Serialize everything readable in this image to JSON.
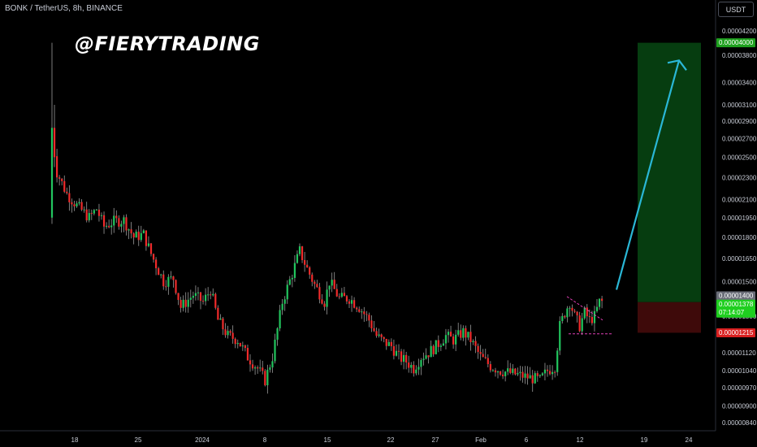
{
  "header": {
    "symbol_title": "BONK / TetherUS, 8h, BINANCE",
    "watermark": "@FIERYTRADING",
    "currency_button": "USDT"
  },
  "colors": {
    "up": "#22c55e",
    "down": "#ef2b2b",
    "wick": "#9a9a9a",
    "target_zone": "#063d10",
    "stop_zone": "#3e0a0a",
    "arrow": "#2ab7d6",
    "pattern_lines": "#e03fb5",
    "target_badge": "#1fa11f",
    "current_badge": "#1fcf1f",
    "stop_badge": "#d92020",
    "level_badge": "#6a6d78"
  },
  "chart_data": {
    "type": "candlestick",
    "title": "BONK / TetherUS, 8h, BINANCE",
    "y_scale": "log",
    "ylim": [
      8e-06,
      4.5e-05
    ],
    "y_ticks": [
      "0.00004200",
      "0.00003800",
      "0.00003400",
      "0.00003100",
      "0.00002900",
      "0.00002700",
      "0.00002500",
      "0.00002300",
      "0.00002100",
      "0.00001950",
      "0.00001800",
      "0.00001650",
      "0.00001500",
      "0.00001300",
      "0.00001120",
      "0.00001040",
      "0.00000970",
      "0.00000900",
      "0.00000840"
    ],
    "x_ticks": [
      "18",
      "25",
      "2024",
      "8",
      "15",
      "22",
      "27",
      "Feb",
      "6",
      "12",
      "19",
      "24"
    ],
    "price_labels": {
      "target": "0.00004000",
      "level": "0.00001400",
      "current": "0.00001378",
      "countdown": "07:14:07",
      "stop": "0.00001215"
    },
    "levels": {
      "target": 4e-05,
      "entry": 1.378e-05,
      "stop": 1.215e-05
    },
    "anchors": [
      [
        0,
        1.95e-05
      ],
      [
        1,
        2.75e-05
      ],
      [
        3,
        2.35e-05
      ],
      [
        7,
        2.15e-05
      ],
      [
        11,
        2.05e-05
      ],
      [
        16,
        1.95e-05
      ],
      [
        19,
        2.02e-05
      ],
      [
        22,
        1.88e-05
      ],
      [
        26,
        1.92e-05
      ],
      [
        30,
        1.93e-05
      ],
      [
        34,
        1.8e-05
      ],
      [
        38,
        1.82e-05
      ],
      [
        41,
        1.68e-05
      ],
      [
        46,
        1.5e-05
      ],
      [
        50,
        1.52e-05
      ],
      [
        53,
        1.35e-05
      ],
      [
        58,
        1.42e-05
      ],
      [
        62,
        1.38e-05
      ],
      [
        65,
        1.45e-05
      ],
      [
        68,
        1.28e-05
      ],
      [
        72,
        1.2e-05
      ],
      [
        76,
        1.18e-05
      ],
      [
        80,
        1.1e-05
      ],
      [
        84,
        1.05e-05
      ],
      [
        87,
        1e-05
      ],
      [
        90,
        1.1e-05
      ],
      [
        94,
        1.38e-05
      ],
      [
        98,
        1.55e-05
      ],
      [
        101,
        1.7e-05
      ],
      [
        104,
        1.58e-05
      ],
      [
        107,
        1.48e-05
      ],
      [
        111,
        1.38e-05
      ],
      [
        113,
        1.5e-05
      ],
      [
        117,
        1.4e-05
      ],
      [
        121,
        1.4e-05
      ],
      [
        125,
        1.35e-05
      ],
      [
        129,
        1.28e-05
      ],
      [
        132,
        1.2e-05
      ],
      [
        135,
        1.17e-05
      ],
      [
        138,
        1.15e-05
      ],
      [
        141,
        1.1e-05
      ],
      [
        144,
        1.08e-05
      ],
      [
        147,
        1.05e-05
      ],
      [
        150,
        1.1e-05
      ],
      [
        153,
        1.12e-05
      ],
      [
        156,
        1.15e-05
      ],
      [
        160,
        1.2e-05
      ],
      [
        163,
        1.18e-05
      ],
      [
        167,
        1.22e-05
      ],
      [
        170,
        1.18e-05
      ],
      [
        174,
        1.1e-05
      ],
      [
        178,
        1.06e-05
      ],
      [
        182,
        1.04e-05
      ],
      [
        186,
        1.03e-05
      ],
      [
        190,
        1.02e-05
      ],
      [
        194,
        1.01e-05
      ],
      [
        198,
        1e-05
      ],
      [
        201,
        1.04e-05
      ],
      [
        204,
        1.06e-05
      ],
      [
        206,
        1.25e-05
      ],
      [
        208,
        1.32e-05
      ],
      [
        210,
        1.38e-05
      ],
      [
        212,
        1.3e-05
      ],
      [
        214,
        1.25e-05
      ],
      [
        216,
        1.32e-05
      ],
      [
        218,
        1.28e-05
      ],
      [
        220,
        1.3e-05
      ],
      [
        222,
        1.38e-05
      ]
    ]
  }
}
